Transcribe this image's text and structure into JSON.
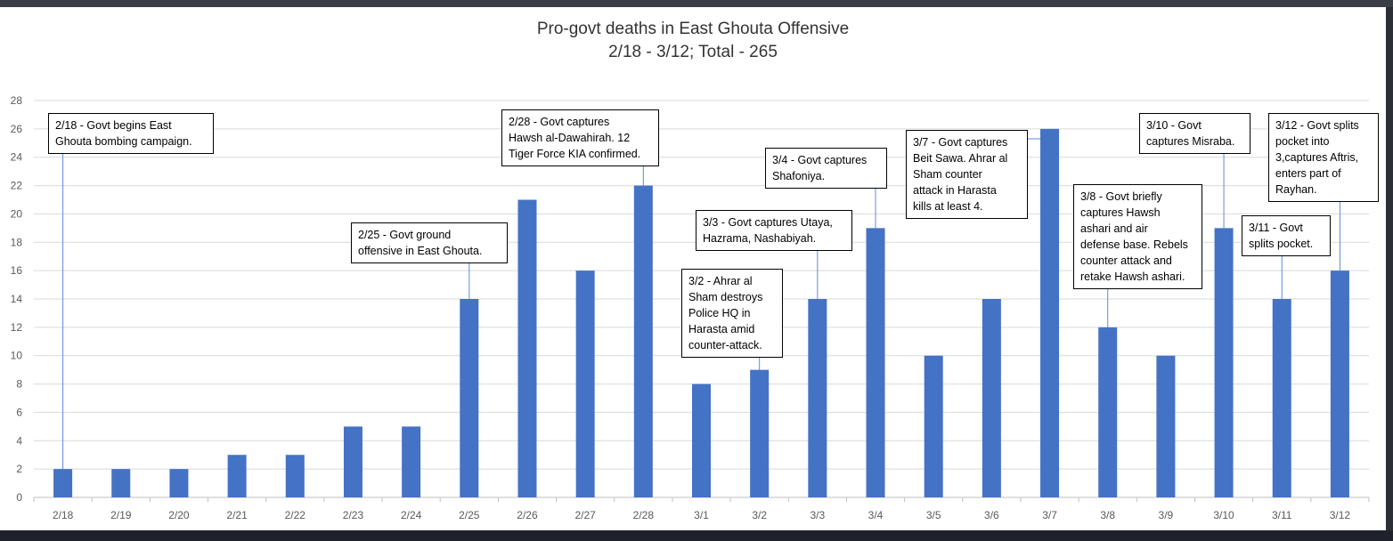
{
  "chart_data": {
    "type": "bar",
    "title": "Pro-govt deaths in East Ghouta Offensive",
    "subtitle": "2/18 - 3/12; Total - 265",
    "categories": [
      "2/18",
      "2/19",
      "2/20",
      "2/21",
      "2/22",
      "2/23",
      "2/24",
      "2/25",
      "2/26",
      "2/27",
      "2/28",
      "3/1",
      "3/2",
      "3/3",
      "3/4",
      "3/5",
      "3/6",
      "3/7",
      "3/8",
      "3/9",
      "3/10",
      "3/11",
      "3/12"
    ],
    "values": [
      2,
      2,
      2,
      3,
      3,
      5,
      5,
      14,
      21,
      16,
      22,
      8,
      9,
      14,
      19,
      10,
      14,
      26,
      12,
      10,
      19,
      14,
      16
    ],
    "yticks": [
      "0",
      "2",
      "4",
      "6",
      "8",
      "10",
      "12",
      "14",
      "16",
      "18",
      "20",
      "22",
      "24",
      "26",
      "28"
    ],
    "ylim": [
      0,
      28
    ],
    "grid": true,
    "bar_color": "#4472c4",
    "annotations": [
      {
        "category": "2/18",
        "text": "2/18 - Govt begins East\nGhouta bombing campaign."
      },
      {
        "category": "2/25",
        "text": "2/25 - Govt ground\noffensive in East Ghouta."
      },
      {
        "category": "2/28",
        "text": "2/28 - Govt captures\nHawsh al-Dawahirah. 12\nTiger Force KIA confirmed."
      },
      {
        "category": "3/2",
        "text": "3/2 - Ahrar al\nSham destroys\nPolice HQ in\nHarasta amid\ncounter-attack."
      },
      {
        "category": "3/3",
        "text": "3/3 - Govt captures Utaya,\nHazrama, Nashabiyah."
      },
      {
        "category": "3/4",
        "text": "3/4 - Govt captures\nShafoniya."
      },
      {
        "category": "3/7",
        "text": "3/7 - Govt captures\nBeit Sawa. Ahrar al\nSham counter\nattack in Harasta\nkills at least 4."
      },
      {
        "category": "3/8",
        "text": "3/8 - Govt briefly\ncaptures Hawsh\nashari and air\ndefense base. Rebels\ncounter attack and\nretake Hawsh ashari."
      },
      {
        "category": "3/10",
        "text": "3/10 - Govt\ncaptures Misraba."
      },
      {
        "category": "3/11",
        "text": "3/11 - Govt\nsplits pocket."
      },
      {
        "category": "3/12",
        "text": "3/12 - Govt splits\npocket into\n3,captures Aftris,\nenters part of\nRayhan."
      }
    ]
  }
}
